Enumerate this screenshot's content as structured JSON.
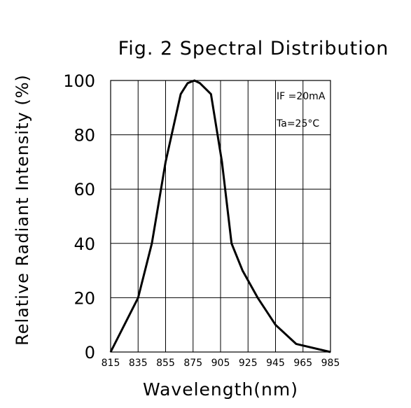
{
  "chart_data": {
    "type": "line",
    "title": "Fig. 2 Spectral Distribution",
    "xlabel": "Wavelength(nm)",
    "ylabel": "Relative Radiant Intensity (%)",
    "x_ticks": [
      "815",
      "835",
      "855",
      "875",
      "905",
      "925",
      "945",
      "965",
      "985"
    ],
    "y_ticks": [
      "0",
      "20",
      "40",
      "60",
      "80",
      "100"
    ],
    "ylim": [
      0,
      100
    ],
    "grid": true,
    "annotations": [
      "IF =20mA",
      "Ta=25°C"
    ],
    "series": [
      {
        "x": [
          0,
          1,
          1.5,
          2,
          2.55,
          2.8,
          3.05,
          3.25,
          3.65,
          4.05,
          4.4,
          4.8,
          5.35,
          6,
          6.75,
          8
        ],
        "y": [
          0,
          20,
          40,
          70,
          95,
          99,
          100,
          99,
          95,
          70,
          40,
          30,
          20,
          10,
          3,
          0
        ]
      }
    ]
  }
}
